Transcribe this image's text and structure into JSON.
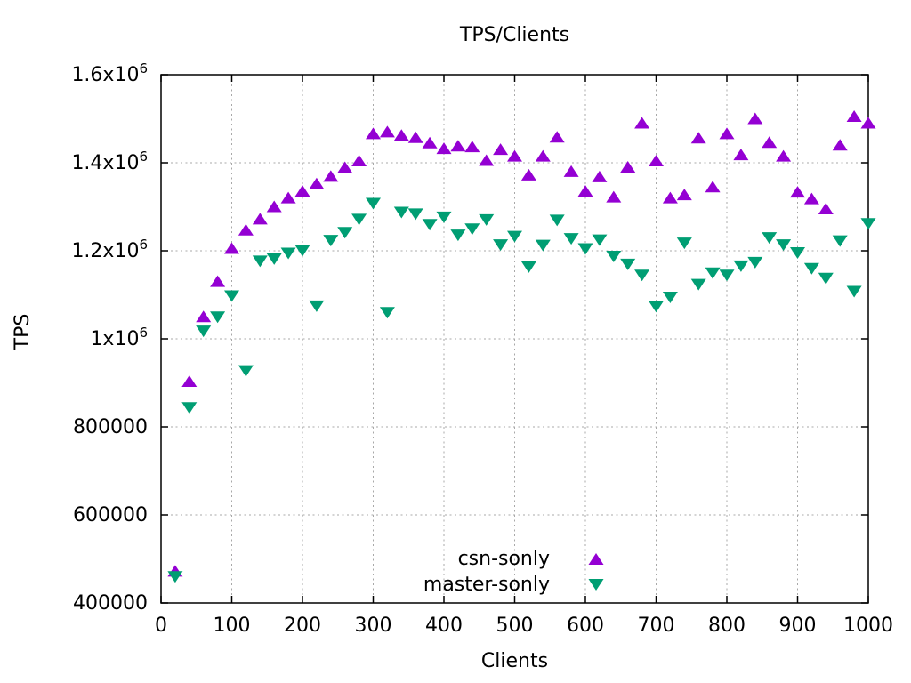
{
  "chart_data": {
    "type": "scatter",
    "title": "TPS/Clients",
    "xlabel": "Clients",
    "ylabel": "TPS",
    "x_range": [
      0,
      1000
    ],
    "y_range": [
      400000,
      1600000
    ],
    "x_ticks": [
      0,
      100,
      200,
      300,
      400,
      500,
      600,
      700,
      800,
      900,
      1000
    ],
    "y_ticks": [
      {
        "value": 400000,
        "label": "400000"
      },
      {
        "value": 600000,
        "label": "600000"
      },
      {
        "value": 800000,
        "label": "800000"
      },
      {
        "value": 1000000,
        "label": "1x10^6"
      },
      {
        "value": 1200000,
        "label": "1.2x10^6"
      },
      {
        "value": 1400000,
        "label": "1.4x10^6"
      },
      {
        "value": 1600000,
        "label": "1.6x10^6"
      }
    ],
    "grid": true,
    "grid_color": "#a8a8a8",
    "border_color": "#000000",
    "legend_position": "inside-bottom-center",
    "x": [
      20,
      40,
      60,
      80,
      100,
      120,
      140,
      160,
      180,
      200,
      220,
      240,
      260,
      280,
      300,
      320,
      340,
      360,
      380,
      400,
      420,
      440,
      460,
      480,
      500,
      520,
      540,
      560,
      580,
      600,
      620,
      640,
      660,
      680,
      700,
      720,
      740,
      760,
      780,
      800,
      820,
      840,
      860,
      880,
      900,
      920,
      940,
      960,
      980,
      1000
    ],
    "series": [
      {
        "name": "csn-sonly",
        "marker": "triangle-up",
        "color": "#9400d3",
        "values": [
          472000,
          903000,
          1050000,
          1130000,
          1205000,
          1247000,
          1272000,
          1300000,
          1320000,
          1335000,
          1352000,
          1369000,
          1389000,
          1404000,
          1466000,
          1470000,
          1462000,
          1457000,
          1445000,
          1432000,
          1438000,
          1436000,
          1405000,
          1430000,
          1415000,
          1372000,
          1415000,
          1458000,
          1380000,
          1335000,
          1368000,
          1322000,
          1390000,
          1490000,
          1404000,
          1320000,
          1327000,
          1456000,
          1345000,
          1466000,
          1418000,
          1500000,
          1446000,
          1415000,
          1333000,
          1318000,
          1295000,
          1440000,
          1505000,
          1490000
        ]
      },
      {
        "name": "master-sonly",
        "marker": "triangle-down",
        "color": "#009e73",
        "values": [
          460000,
          844000,
          1018000,
          1050000,
          1098000,
          928000,
          1177000,
          1182000,
          1195000,
          1201000,
          1075000,
          1224000,
          1242000,
          1272000,
          1308000,
          1060000,
          1288000,
          1284000,
          1260000,
          1277000,
          1236000,
          1250000,
          1271000,
          1214000,
          1233000,
          1164000,
          1213000,
          1270000,
          1228000,
          1205000,
          1225000,
          1188000,
          1170000,
          1145000,
          1074000,
          1095000,
          1218000,
          1124000,
          1150000,
          1145000,
          1166000,
          1174000,
          1230000,
          1214000,
          1196000,
          1160000,
          1138000,
          1223000,
          1108000,
          1262000
        ]
      }
    ]
  }
}
